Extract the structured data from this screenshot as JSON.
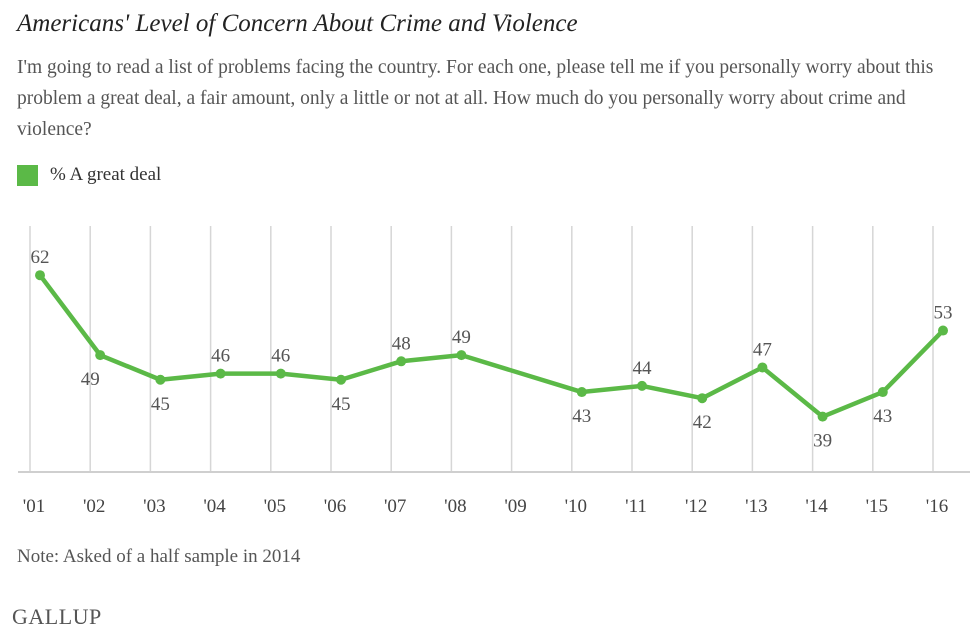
{
  "chart_data": {
    "type": "line",
    "title": "Americans' Level of Concern About Crime and Violence",
    "subtitle": "I'm going to read a list of problems facing the country. For each one, please tell me if you personally worry about this problem a great deal, a fair amount, only a little or not at all. How much do you personally worry about crime and violence?",
    "legend": [
      "% A great deal"
    ],
    "legend_placement": "top-left",
    "xlabel": "",
    "ylabel": "",
    "ylim": [
      30,
      70
    ],
    "grid": "vertical",
    "tick_labels": [
      "'01",
      "'02",
      "'03",
      "'04",
      "'05",
      "'06",
      "'07",
      "'08",
      "'09",
      "'10",
      "'11",
      "'12",
      "'13",
      "'14",
      "'15",
      "'16"
    ],
    "series": [
      {
        "name": "% A great deal",
        "color": "#5bb947",
        "points": [
          {
            "year": 2001,
            "value": 62,
            "label_position": "above"
          },
          {
            "year": 2002,
            "value": 49,
            "label_position": "below"
          },
          {
            "year": 2003,
            "value": 45,
            "label_position": "below"
          },
          {
            "year": 2004,
            "value": 46,
            "label_position": "above"
          },
          {
            "year": 2005,
            "value": 46,
            "label_position": "above"
          },
          {
            "year": 2006,
            "value": 45,
            "label_position": "below"
          },
          {
            "year": 2007,
            "value": 48,
            "label_position": "above"
          },
          {
            "year": 2008,
            "value": 49,
            "label_position": "above"
          },
          {
            "year": 2010,
            "value": 43,
            "label_position": "below"
          },
          {
            "year": 2011,
            "value": 44,
            "label_position": "above"
          },
          {
            "year": 2012,
            "value": 42,
            "label_position": "below"
          },
          {
            "year": 2013,
            "value": 47,
            "label_position": "above"
          },
          {
            "year": 2014,
            "value": 39,
            "label_position": "below"
          },
          {
            "year": 2015,
            "value": 43,
            "label_position": "below"
          },
          {
            "year": 2016,
            "value": 53,
            "label_position": "above"
          }
        ]
      }
    ],
    "note": "Note: Asked of a half sample in 2014",
    "source": "GALLUP"
  }
}
